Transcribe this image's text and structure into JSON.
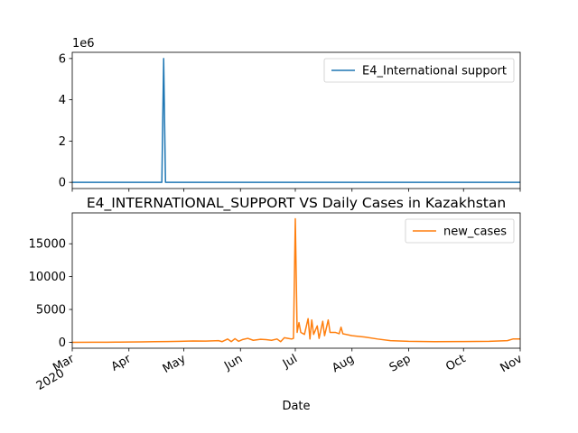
{
  "chart_data": [
    {
      "type": "line",
      "title": "",
      "xlabel": "",
      "ylabel": "",
      "y_offset_label": "1e6",
      "ylim": [
        -300000,
        6300000
      ],
      "yticks": [
        0,
        2000000,
        4000000,
        6000000
      ],
      "ytick_labels": [
        "0",
        "2",
        "4",
        "6"
      ],
      "x_range": [
        "2020-03-01",
        "2020-11-01"
      ],
      "legend_position": "top-right",
      "series": [
        {
          "name": "E4_International support",
          "color": "#1f77b4",
          "points": [
            [
              "2020-03-01",
              0
            ],
            [
              "2020-04-19",
              0
            ],
            [
              "2020-04-20",
              6000000
            ],
            [
              "2020-04-21",
              0
            ],
            [
              "2020-11-01",
              0
            ]
          ]
        }
      ]
    },
    {
      "type": "line",
      "title": "E4_INTERNATIONAL_SUPPORT VS Daily Cases in Kazakhstan",
      "xlabel": "Date",
      "ylabel": "",
      "ylim": [
        -900,
        19700
      ],
      "yticks": [
        0,
        5000,
        10000,
        15000
      ],
      "ytick_labels": [
        "0",
        "5000",
        "10000",
        "15000"
      ],
      "x_range": [
        "2020-03-01",
        "2020-11-01"
      ],
      "xticks": [
        {
          "date": "2020-03-01",
          "label": "Mar",
          "sublabel": "2020"
        },
        {
          "date": "2020-04-01",
          "label": "Apr",
          "sublabel": ""
        },
        {
          "date": "2020-05-01",
          "label": "May",
          "sublabel": ""
        },
        {
          "date": "2020-06-01",
          "label": "Jun",
          "sublabel": ""
        },
        {
          "date": "2020-07-01",
          "label": "Jul",
          "sublabel": ""
        },
        {
          "date": "2020-08-01",
          "label": "Aug",
          "sublabel": ""
        },
        {
          "date": "2020-09-01",
          "label": "Sep",
          "sublabel": ""
        },
        {
          "date": "2020-10-01",
          "label": "Oct",
          "sublabel": ""
        },
        {
          "date": "2020-11-01",
          "label": "Nov",
          "sublabel": ""
        }
      ],
      "legend_position": "top-right",
      "series": [
        {
          "name": "new_cases",
          "color": "#ff7f0e",
          "points": [
            [
              "2020-03-01",
              0
            ],
            [
              "2020-03-13",
              4
            ],
            [
              "2020-03-20",
              10
            ],
            [
              "2020-03-27",
              30
            ],
            [
              "2020-04-01",
              40
            ],
            [
              "2020-04-08",
              60
            ],
            [
              "2020-04-15",
              90
            ],
            [
              "2020-04-22",
              110
            ],
            [
              "2020-04-29",
              150
            ],
            [
              "2020-05-06",
              200
            ],
            [
              "2020-05-13",
              180
            ],
            [
              "2020-05-20",
              250
            ],
            [
              "2020-05-22",
              100
            ],
            [
              "2020-05-25",
              500
            ],
            [
              "2020-05-27",
              100
            ],
            [
              "2020-05-29",
              550
            ],
            [
              "2020-05-31",
              150
            ],
            [
              "2020-06-02",
              400
            ],
            [
              "2020-06-05",
              600
            ],
            [
              "2020-06-08",
              300
            ],
            [
              "2020-06-12",
              450
            ],
            [
              "2020-06-15",
              400
            ],
            [
              "2020-06-18",
              300
            ],
            [
              "2020-06-21",
              500
            ],
            [
              "2020-06-23",
              100
            ],
            [
              "2020-06-25",
              700
            ],
            [
              "2020-06-27",
              600
            ],
            [
              "2020-06-29",
              500
            ],
            [
              "2020-06-30",
              600
            ],
            [
              "2020-07-01",
              18800
            ],
            [
              "2020-07-02",
              1500
            ],
            [
              "2020-07-03",
              3000
            ],
            [
              "2020-07-04",
              1500
            ],
            [
              "2020-07-06",
              1200
            ],
            [
              "2020-07-08",
              3600
            ],
            [
              "2020-07-09",
              500
            ],
            [
              "2020-07-10",
              3400
            ],
            [
              "2020-07-11",
              1200
            ],
            [
              "2020-07-13",
              2500
            ],
            [
              "2020-07-14",
              600
            ],
            [
              "2020-07-16",
              3200
            ],
            [
              "2020-07-17",
              1000
            ],
            [
              "2020-07-19",
              3400
            ],
            [
              "2020-07-20",
              1500
            ],
            [
              "2020-07-23",
              1500
            ],
            [
              "2020-07-25",
              1300
            ],
            [
              "2020-07-26",
              2300
            ],
            [
              "2020-07-27",
              1300
            ],
            [
              "2020-08-01",
              1000
            ],
            [
              "2020-08-08",
              800
            ],
            [
              "2020-08-15",
              500
            ],
            [
              "2020-08-22",
              250
            ],
            [
              "2020-09-01",
              150
            ],
            [
              "2020-09-15",
              100
            ],
            [
              "2020-10-01",
              110
            ],
            [
              "2020-10-15",
              150
            ],
            [
              "2020-10-25",
              250
            ],
            [
              "2020-10-28",
              500
            ],
            [
              "2020-11-01",
              500
            ]
          ]
        }
      ]
    }
  ]
}
